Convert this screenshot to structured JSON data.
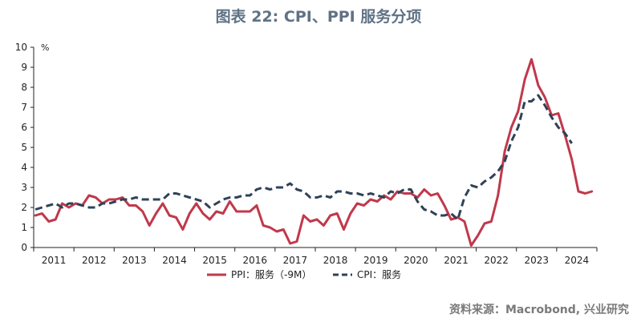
{
  "title": "图表 22: CPI、PPI 服务分项",
  "source": "资料来源：Macrobond, 兴业研究",
  "colors": {
    "ppi": "#c0394b",
    "cpi": "#2f4257",
    "axis": "#222222"
  },
  "chart_data": {
    "type": "line",
    "ylabel": "%",
    "ylim": [
      0,
      10
    ],
    "yticks": [
      "0",
      "1",
      "2",
      "3",
      "4",
      "5",
      "6",
      "7",
      "8",
      "9",
      "10"
    ],
    "xlim": [
      "2011-01",
      "2024-12"
    ],
    "xtick_labels": [
      "2011",
      "2012",
      "2013",
      "2014",
      "2015",
      "2016",
      "2017",
      "2018",
      "2019",
      "2020",
      "2021",
      "2022",
      "2023",
      "2024"
    ],
    "legend_position": "bottom-center",
    "grid": false,
    "series": [
      {
        "name": "PPI：服务（-9M）",
        "style": "solid",
        "points": [
          [
            "2011-01",
            1.6
          ],
          [
            "2011-03",
            1.7
          ],
          [
            "2011-05",
            1.3
          ],
          [
            "2011-07",
            1.4
          ],
          [
            "2011-09",
            2.2
          ],
          [
            "2011-11",
            2.0
          ],
          [
            "2012-01",
            2.2
          ],
          [
            "2012-03",
            2.1
          ],
          [
            "2012-05",
            2.6
          ],
          [
            "2012-07",
            2.5
          ],
          [
            "2012-09",
            2.2
          ],
          [
            "2012-11",
            2.4
          ],
          [
            "2013-01",
            2.4
          ],
          [
            "2013-03",
            2.5
          ],
          [
            "2013-05",
            2.1
          ],
          [
            "2013-07",
            2.1
          ],
          [
            "2013-09",
            1.8
          ],
          [
            "2013-11",
            1.1
          ],
          [
            "2014-01",
            1.7
          ],
          [
            "2014-03",
            2.2
          ],
          [
            "2014-05",
            1.6
          ],
          [
            "2014-07",
            1.5
          ],
          [
            "2014-09",
            0.9
          ],
          [
            "2014-11",
            1.7
          ],
          [
            "2015-01",
            2.2
          ],
          [
            "2015-03",
            1.7
          ],
          [
            "2015-05",
            1.4
          ],
          [
            "2015-07",
            1.8
          ],
          [
            "2015-09",
            1.7
          ],
          [
            "2015-11",
            2.3
          ],
          [
            "2016-01",
            1.8
          ],
          [
            "2016-03",
            1.8
          ],
          [
            "2016-05",
            1.8
          ],
          [
            "2016-07",
            2.1
          ],
          [
            "2016-09",
            1.1
          ],
          [
            "2016-11",
            1.0
          ],
          [
            "2017-01",
            0.8
          ],
          [
            "2017-03",
            0.9
          ],
          [
            "2017-05",
            0.2
          ],
          [
            "2017-07",
            0.3
          ],
          [
            "2017-09",
            1.6
          ],
          [
            "2017-11",
            1.3
          ],
          [
            "2018-01",
            1.4
          ],
          [
            "2018-03",
            1.1
          ],
          [
            "2018-05",
            1.6
          ],
          [
            "2018-07",
            1.7
          ],
          [
            "2018-09",
            0.9
          ],
          [
            "2018-11",
            1.7
          ],
          [
            "2019-01",
            2.2
          ],
          [
            "2019-03",
            2.1
          ],
          [
            "2019-05",
            2.4
          ],
          [
            "2019-07",
            2.3
          ],
          [
            "2019-09",
            2.6
          ],
          [
            "2019-11",
            2.4
          ],
          [
            "2020-01",
            2.8
          ],
          [
            "2020-03",
            2.7
          ],
          [
            "2020-05",
            2.7
          ],
          [
            "2020-07",
            2.5
          ],
          [
            "2020-09",
            2.9
          ],
          [
            "2020-11",
            2.6
          ],
          [
            "2021-01",
            2.7
          ],
          [
            "2021-03",
            2.1
          ],
          [
            "2021-05",
            1.4
          ],
          [
            "2021-07",
            1.5
          ],
          [
            "2021-09",
            1.3
          ],
          [
            "2021-11",
            0.1
          ],
          [
            "2022-01",
            0.6
          ],
          [
            "2022-03",
            1.2
          ],
          [
            "2022-05",
            1.3
          ],
          [
            "2022-07",
            2.6
          ],
          [
            "2022-09",
            4.8
          ],
          [
            "2022-11",
            6.0
          ],
          [
            "2023-01",
            6.8
          ],
          [
            "2023-03",
            8.4
          ],
          [
            "2023-05",
            9.4
          ],
          [
            "2023-07",
            8.1
          ],
          [
            "2023-09",
            7.5
          ],
          [
            "2023-11",
            6.6
          ],
          [
            "2024-01",
            6.7
          ],
          [
            "2024-03",
            5.6
          ],
          [
            "2024-05",
            4.4
          ],
          [
            "2024-07",
            2.8
          ],
          [
            "2024-09",
            2.7
          ],
          [
            "2024-11",
            2.8
          ]
        ]
      },
      {
        "name": "CPI：服务",
        "style": "dashed",
        "points": [
          [
            "2011-01",
            1.9
          ],
          [
            "2011-03",
            2.0
          ],
          [
            "2011-05",
            2.1
          ],
          [
            "2011-07",
            2.2
          ],
          [
            "2011-09",
            2.0
          ],
          [
            "2011-11",
            2.2
          ],
          [
            "2012-01",
            2.2
          ],
          [
            "2012-03",
            2.1
          ],
          [
            "2012-05",
            2.0
          ],
          [
            "2012-07",
            2.0
          ],
          [
            "2012-09",
            2.2
          ],
          [
            "2012-11",
            2.2
          ],
          [
            "2013-01",
            2.3
          ],
          [
            "2013-03",
            2.4
          ],
          [
            "2013-05",
            2.4
          ],
          [
            "2013-07",
            2.5
          ],
          [
            "2013-09",
            2.4
          ],
          [
            "2013-11",
            2.4
          ],
          [
            "2014-01",
            2.4
          ],
          [
            "2014-03",
            2.4
          ],
          [
            "2014-05",
            2.7
          ],
          [
            "2014-07",
            2.7
          ],
          [
            "2014-09",
            2.6
          ],
          [
            "2014-11",
            2.5
          ],
          [
            "2015-01",
            2.4
          ],
          [
            "2015-03",
            2.3
          ],
          [
            "2015-05",
            2.0
          ],
          [
            "2015-07",
            2.2
          ],
          [
            "2015-09",
            2.4
          ],
          [
            "2015-11",
            2.5
          ],
          [
            "2016-01",
            2.5
          ],
          [
            "2016-03",
            2.6
          ],
          [
            "2016-05",
            2.6
          ],
          [
            "2016-07",
            2.9
          ],
          [
            "2016-09",
            3.0
          ],
          [
            "2016-11",
            2.9
          ],
          [
            "2017-01",
            3.0
          ],
          [
            "2017-03",
            3.0
          ],
          [
            "2017-05",
            3.2
          ],
          [
            "2017-07",
            2.9
          ],
          [
            "2017-09",
            2.8
          ],
          [
            "2017-11",
            2.5
          ],
          [
            "2018-01",
            2.5
          ],
          [
            "2018-03",
            2.6
          ],
          [
            "2018-05",
            2.5
          ],
          [
            "2018-07",
            2.8
          ],
          [
            "2018-09",
            2.8
          ],
          [
            "2018-11",
            2.7
          ],
          [
            "2019-01",
            2.7
          ],
          [
            "2019-03",
            2.6
          ],
          [
            "2019-05",
            2.7
          ],
          [
            "2019-07",
            2.6
          ],
          [
            "2019-09",
            2.5
          ],
          [
            "2019-11",
            2.8
          ],
          [
            "2020-01",
            2.7
          ],
          [
            "2020-03",
            2.9
          ],
          [
            "2020-05",
            2.9
          ],
          [
            "2020-07",
            2.3
          ],
          [
            "2020-09",
            1.9
          ],
          [
            "2020-11",
            1.8
          ],
          [
            "2021-01",
            1.6
          ],
          [
            "2021-03",
            1.6
          ],
          [
            "2021-05",
            1.7
          ],
          [
            "2021-07",
            1.4
          ],
          [
            "2021-09",
            2.5
          ],
          [
            "2021-11",
            3.1
          ],
          [
            "2022-01",
            3.0
          ],
          [
            "2022-03",
            3.3
          ],
          [
            "2022-05",
            3.5
          ],
          [
            "2022-07",
            3.8
          ],
          [
            "2022-09",
            4.3
          ],
          [
            "2022-11",
            5.3
          ],
          [
            "2023-01",
            6.0
          ],
          [
            "2023-03",
            7.3
          ],
          [
            "2023-05",
            7.3
          ],
          [
            "2023-07",
            7.6
          ],
          [
            "2023-09",
            7.1
          ],
          [
            "2023-11",
            6.5
          ],
          [
            "2024-01",
            6.0
          ],
          [
            "2024-03",
            5.7
          ],
          [
            "2024-05",
            5.2
          ]
        ]
      }
    ]
  }
}
